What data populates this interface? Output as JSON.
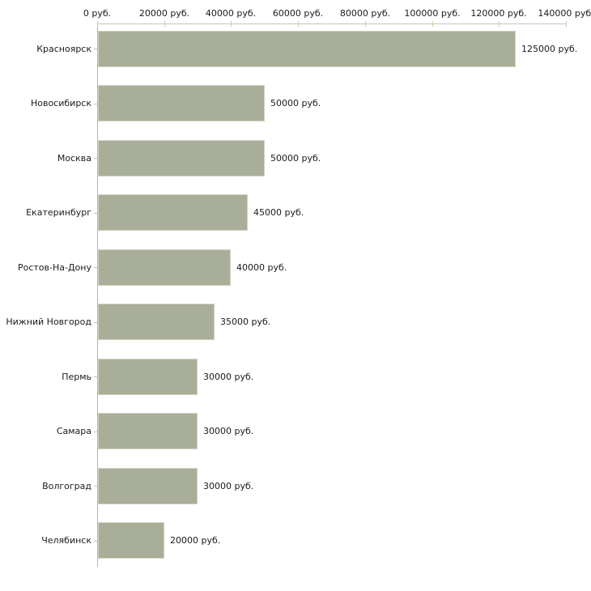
{
  "chart_data": {
    "type": "bar",
    "orientation": "horizontal",
    "title": "",
    "xlabel": "",
    "ylabel": "",
    "categories": [
      "Красноярск",
      "Новосибирск",
      "Москва",
      "Екатеринбург",
      "Ростов-На-Дону",
      "Нижний Новгород",
      "Пермь",
      "Самара",
      "Волгоград",
      "Челябинск"
    ],
    "values": [
      125000,
      50000,
      50000,
      45000,
      40000,
      35000,
      30000,
      30000,
      30000,
      20000
    ],
    "value_labels": [
      "125000 руб.",
      "50000 руб.",
      "50000 руб.",
      "45000 руб.",
      "40000 руб.",
      "35000 руб.",
      "30000 руб.",
      "30000 руб.",
      "30000 руб.",
      "20000 руб."
    ],
    "xlim": [
      0,
      140000
    ],
    "x_ticks": [
      0,
      20000,
      40000,
      60000,
      80000,
      100000,
      120000,
      140000
    ],
    "x_tick_labels": [
      "0 руб.",
      "20000 руб.",
      "40000 руб.",
      "60000 руб.",
      "80000 руб.",
      "100000 руб.",
      "120000 руб.",
      "140000 руб."
    ],
    "axis_position": "top",
    "grid": false,
    "legend": false
  },
  "colors": {
    "bar_fill": "#a9ae98",
    "bar_border": "#d0d3c2",
    "horizontal_axis_line": "#c6c6c6",
    "vertical_axis_line": "#b3b3b3",
    "x_tick_mark": "#cccf9f",
    "row_tick_mark": "#c9c0ae",
    "label_text": "#1a1a1a",
    "background": "#ffffff"
  }
}
